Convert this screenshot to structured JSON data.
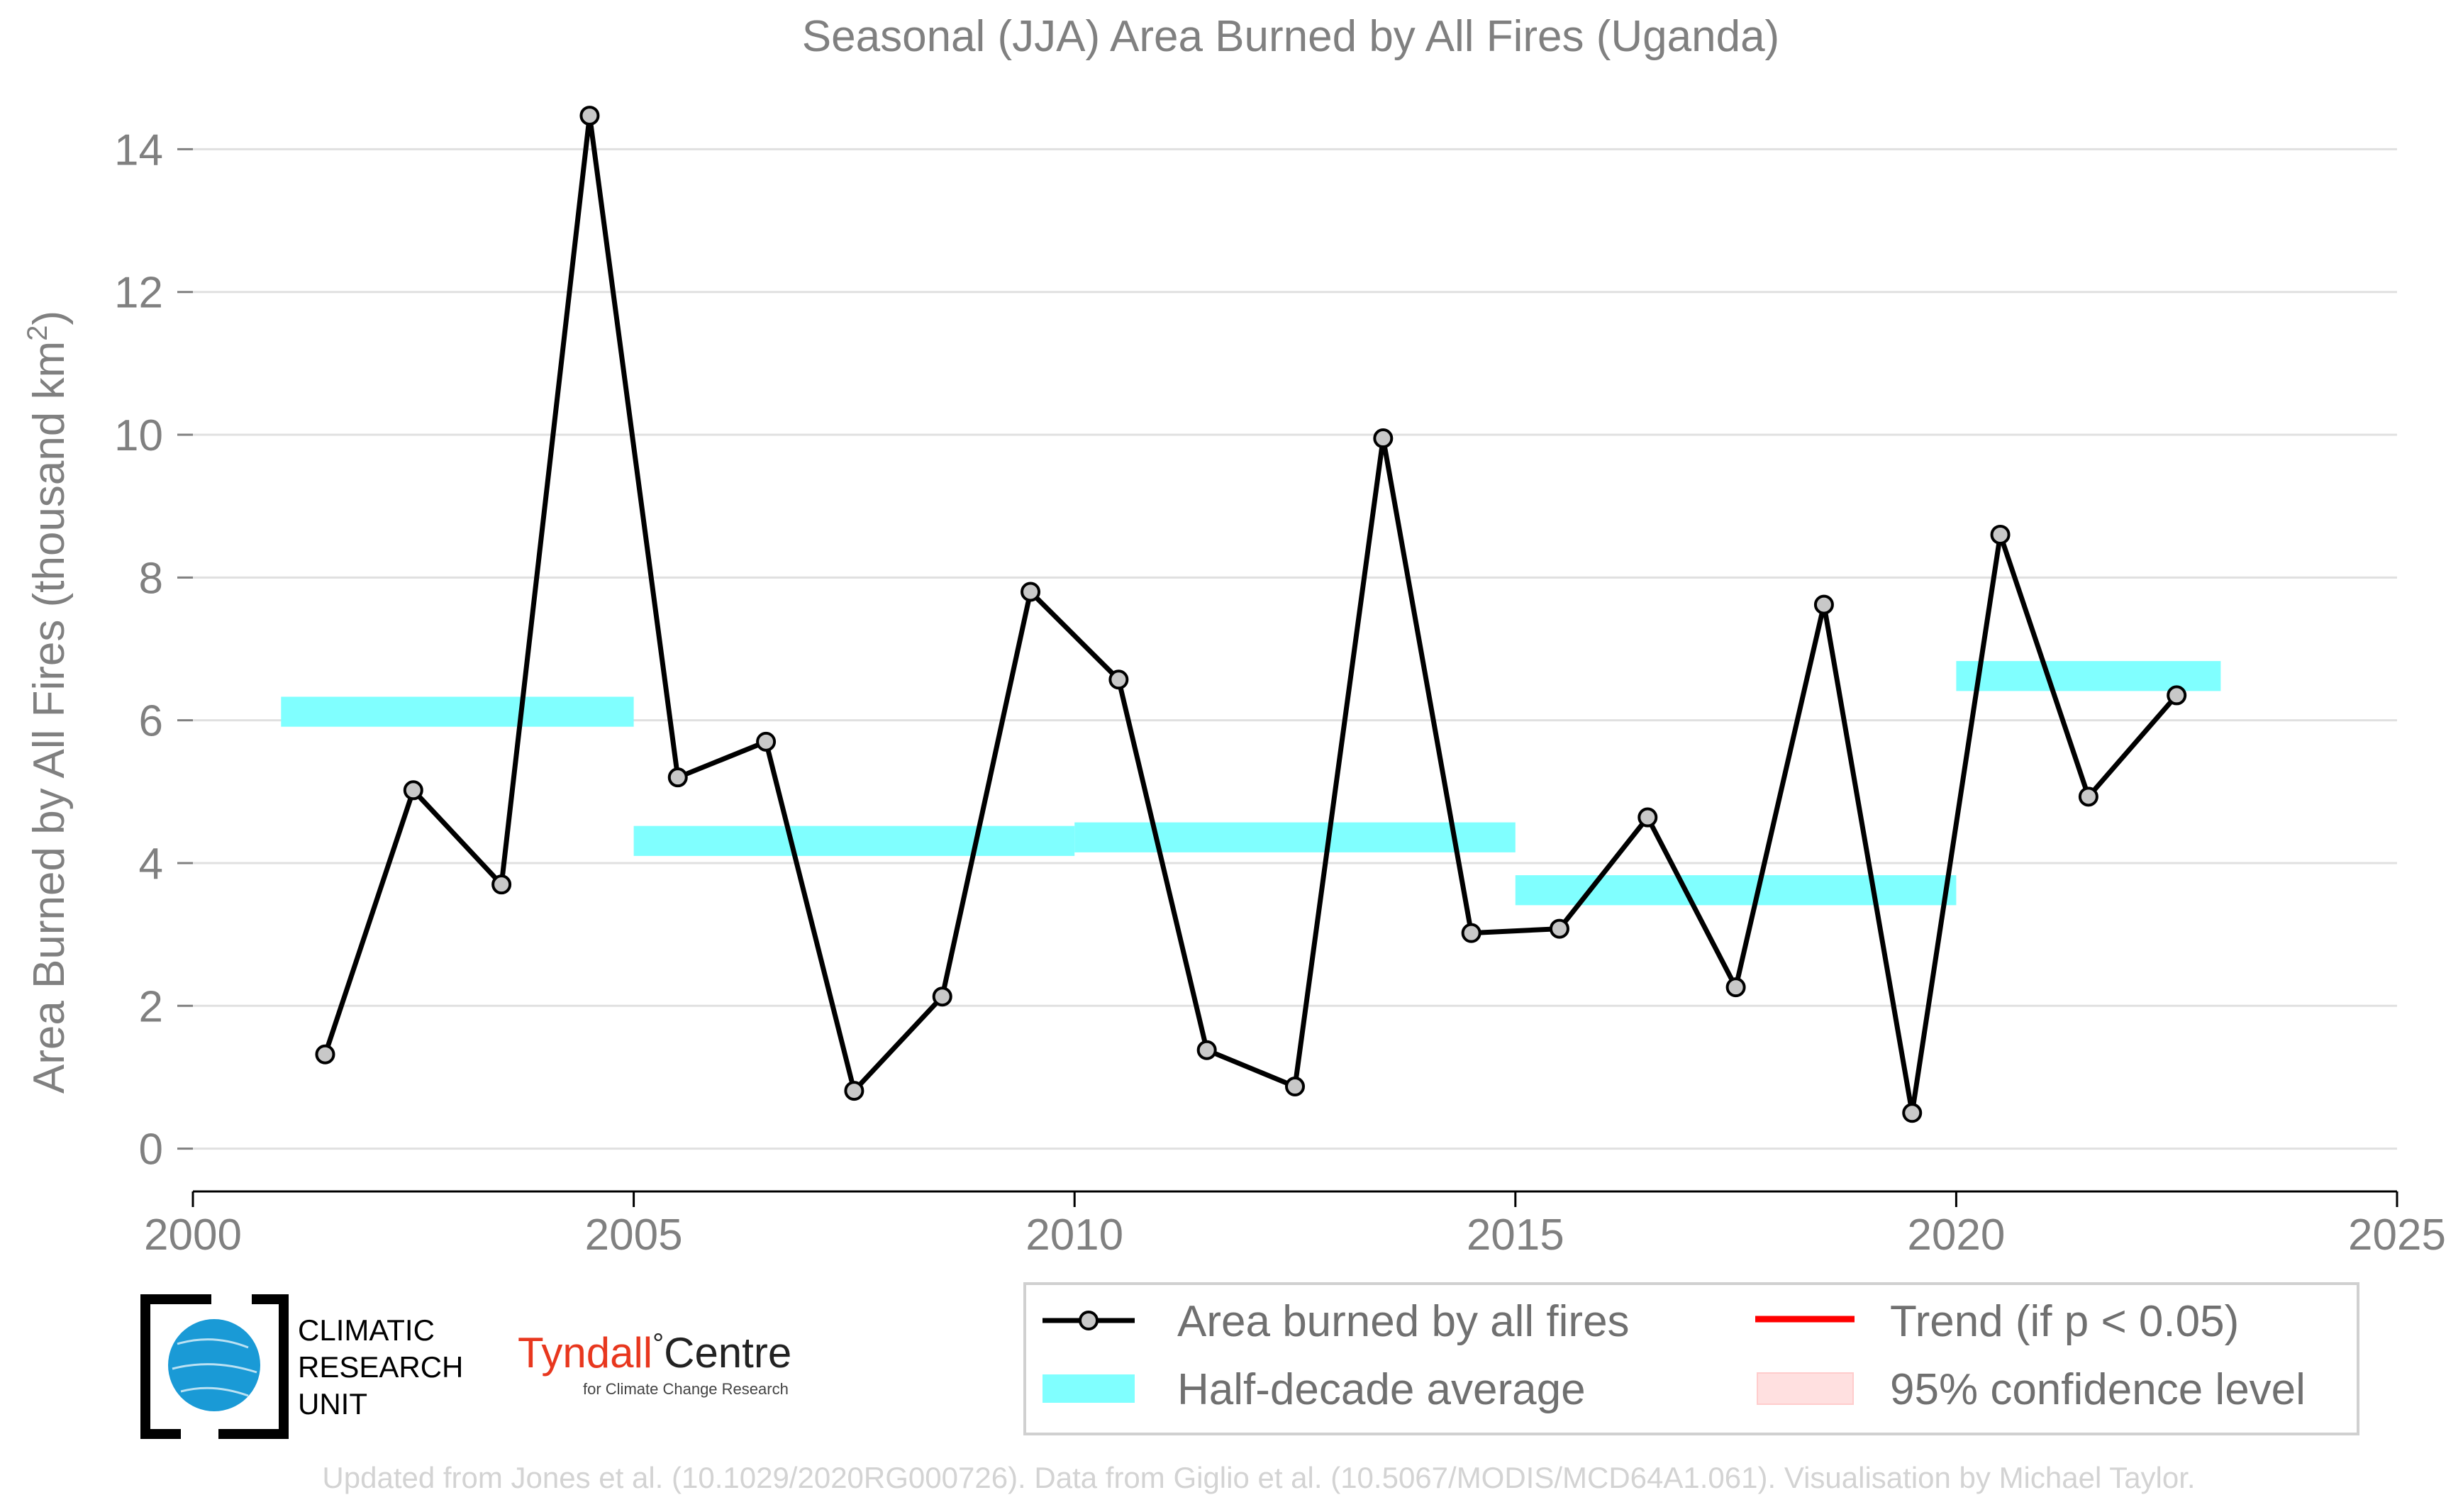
{
  "chart_data": {
    "type": "line",
    "title": "Seasonal (JJA) Area Burned by All Fires (Uganda)",
    "ylabel": "Area Burned by All Fires (thousand km",
    "ylabel_sup": "2",
    "ylabel_end": ")",
    "xlim": [
      2000,
      2025
    ],
    "ylim": [
      -0.6,
      14.6
    ],
    "x_ticks": [
      2000,
      2005,
      2010,
      2015,
      2020,
      2025
    ],
    "y_ticks": [
      0,
      2,
      4,
      6,
      8,
      10,
      12,
      14
    ],
    "grid": "horizontal",
    "series": [
      {
        "name": "Area burned by all fires",
        "color": "#000000",
        "marker_fill": "#c8c8c8",
        "x": [
          2001.5,
          2002.5,
          2003.5,
          2004.5,
          2005.5,
          2006.5,
          2007.5,
          2008.5,
          2009.5,
          2010.5,
          2011.5,
          2012.5,
          2013.5,
          2014.5,
          2015.5,
          2016.5,
          2017.5,
          2018.5,
          2019.5,
          2020.5,
          2021.5,
          2022.5
        ],
        "values": [
          1.32,
          5.02,
          3.7,
          14.47,
          5.2,
          5.7,
          0.81,
          2.13,
          7.8,
          6.57,
          1.38,
          0.87,
          9.95,
          3.02,
          3.08,
          4.64,
          2.26,
          7.62,
          0.5,
          8.6,
          4.93,
          6.35
        ]
      }
    ],
    "half_decade_average": {
      "name": "Half-decade average",
      "color": "#80ffff",
      "segments": [
        {
          "x0": 2001,
          "x1": 2005,
          "y": 6.12
        },
        {
          "x0": 2005,
          "x1": 2010,
          "y": 4.31
        },
        {
          "x0": 2010,
          "x1": 2015,
          "y": 4.36
        },
        {
          "x0": 2015,
          "x1": 2020,
          "y": 3.62
        },
        {
          "x0": 2020,
          "x1": 2023,
          "y": 6.62
        }
      ]
    },
    "legend": [
      {
        "label": "Area burned by all fires",
        "kind": "line-marker",
        "color": "#000000"
      },
      {
        "label": "Trend (if p < 0.05)",
        "kind": "line",
        "color": "#ff0000"
      },
      {
        "label": "Half-decade average",
        "kind": "band",
        "color": "#80ffff"
      },
      {
        "label": "95% confidence level",
        "kind": "patch",
        "color": "#ffe0e0"
      }
    ],
    "legend_position": "bottom-right"
  },
  "logos": {
    "cru_line1": "CLIMATIC",
    "cru_line2": "RESEARCH",
    "cru_line3": "UNIT",
    "tyndall_main": "Tyndall",
    "tyndall_degree": "°",
    "tyndall_centre": "Centre",
    "tyndall_sub": "for Climate Change Research",
    "tyndall_color": "#e8371e",
    "cru_globe_color": "#1a9ad6"
  },
  "footer": "Updated from Jones et al. (10.1029/2020RG000726). Data from Giglio et al. (10.5067/MODIS/MCD64A1.061). Visualisation by Michael Taylor."
}
